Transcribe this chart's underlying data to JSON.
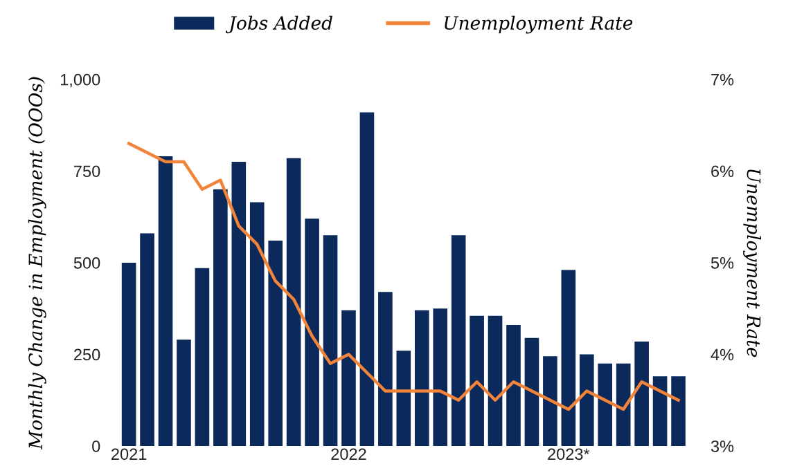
{
  "chart_data": {
    "type": "bar",
    "ylabel": "Monthly Change in Employment (OOOs)",
    "y2label": "Unemployment Rate",
    "categories": [
      "2021",
      null,
      null,
      null,
      null,
      null,
      null,
      null,
      null,
      null,
      null,
      null,
      "2022",
      null,
      null,
      null,
      null,
      null,
      null,
      null,
      null,
      null,
      null,
      null,
      "2023*",
      null,
      null,
      null,
      null,
      null,
      null
    ],
    "series": [
      {
        "name": "Jobs Added",
        "color": "#0b2a5b",
        "values": [
          500,
          580,
          790,
          290,
          485,
          700,
          775,
          665,
          560,
          785,
          620,
          575,
          370,
          910,
          420,
          260,
          370,
          375,
          575,
          355,
          355,
          330,
          295,
          245,
          480,
          250,
          225,
          225,
          285,
          190,
          190
        ]
      },
      {
        "name": "Unemployment Rate",
        "type": "line",
        "axis": "y2",
        "color": "#f2843a",
        "values": [
          6.3,
          6.2,
          6.1,
          6.1,
          5.8,
          5.9,
          5.4,
          5.2,
          4.8,
          4.6,
          4.2,
          3.9,
          4.0,
          3.8,
          3.6,
          3.6,
          3.6,
          3.6,
          3.5,
          3.7,
          3.5,
          3.7,
          3.6,
          3.5,
          3.4,
          3.6,
          3.5,
          3.4,
          3.7,
          3.6,
          3.5
        ]
      }
    ],
    "ylim": [
      0,
      1000
    ],
    "yticks": [
      0,
      250,
      500,
      750,
      {
        "value": 1000,
        "label": "1,000"
      }
    ],
    "y2lim": [
      3,
      7
    ],
    "y2ticks": [
      {
        "value": 3,
        "label": "3%"
      },
      {
        "value": 4,
        "label": "4%"
      },
      {
        "value": 5,
        "label": "5%"
      },
      {
        "value": 6,
        "label": "6%"
      },
      {
        "value": 7,
        "label": "7%"
      }
    ],
    "legend": "top",
    "grid": false
  }
}
